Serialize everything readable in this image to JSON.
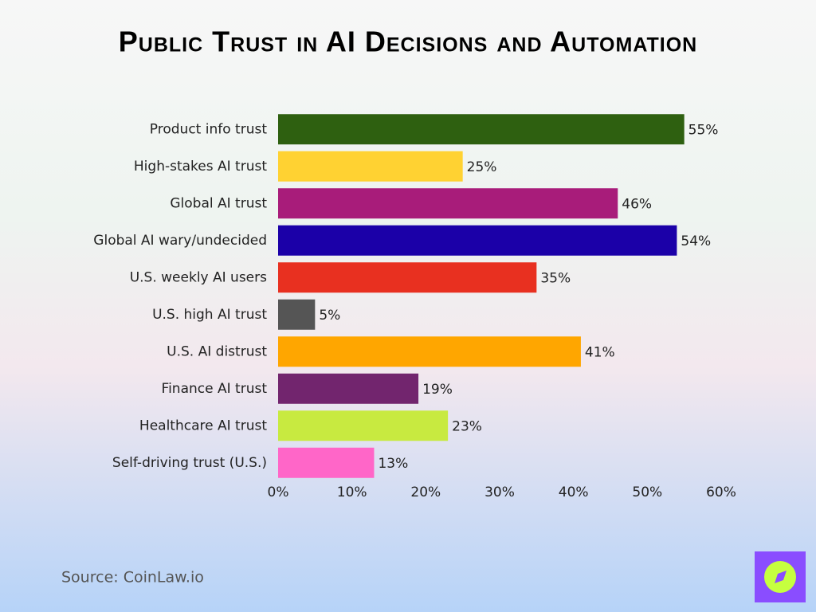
{
  "chart_data": {
    "type": "bar",
    "orientation": "horizontal",
    "title": "Public Trust in AI Decisions and Automation",
    "categories": [
      "Product info trust",
      "High-stakes AI trust",
      "Global AI trust",
      "Global AI wary/undecided",
      "U.S. weekly AI users",
      "U.S. high AI trust",
      "U.S. AI distrust",
      "Finance AI trust",
      "Healthcare AI trust",
      "Self-driving trust (U.S.)"
    ],
    "values": [
      55,
      25,
      46,
      54,
      35,
      5,
      41,
      19,
      23,
      13
    ],
    "value_labels": [
      "55%",
      "25%",
      "46%",
      "54%",
      "35%",
      "5%",
      "41%",
      "19%",
      "23%",
      "13%"
    ],
    "colors": [
      "#2e6010",
      "#ffd232",
      "#a81c7a",
      "#1b00a8",
      "#e83020",
      "#555555",
      "#ffa600",
      "#72256e",
      "#c8ea40",
      "#ff66c8"
    ],
    "xlim": [
      0,
      60
    ],
    "xticks": [
      {
        "value": 0,
        "label": "0%"
      },
      {
        "value": 10,
        "label": "10%"
      },
      {
        "value": 20,
        "label": "20%"
      },
      {
        "value": 30,
        "label": "30%"
      },
      {
        "value": 40,
        "label": "40%"
      },
      {
        "value": 50,
        "label": "50%"
      },
      {
        "value": 60,
        "label": "60%"
      }
    ],
    "grid": false,
    "source": "Source: CoinLaw.io"
  }
}
